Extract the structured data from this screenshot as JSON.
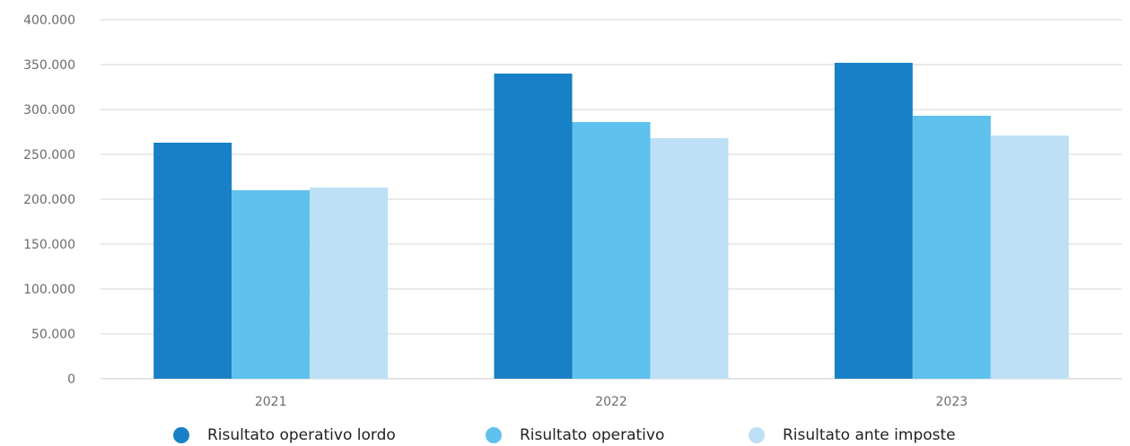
{
  "chart_data": {
    "type": "bar",
    "categories": [
      "2021",
      "2022",
      "2023"
    ],
    "series": [
      {
        "name": "Risultato operativo lordo",
        "color": "#1880c6",
        "values": [
          263000,
          340000,
          352000
        ]
      },
      {
        "name": "Risultato operativo",
        "color": "#5ec1ee",
        "values": [
          210000,
          286000,
          293000
        ]
      },
      {
        "name": "Risultato ante imposte",
        "color": "#bde0f6",
        "values": [
          213000,
          268000,
          271000
        ]
      }
    ],
    "ylim": [
      0,
      400000
    ],
    "yticks": [
      "0",
      "50.000",
      "100.000",
      "150.000",
      "200.000",
      "250.000",
      "300.000",
      "350.000",
      "400.000"
    ],
    "grid": true,
    "legend_position": "bottom"
  }
}
